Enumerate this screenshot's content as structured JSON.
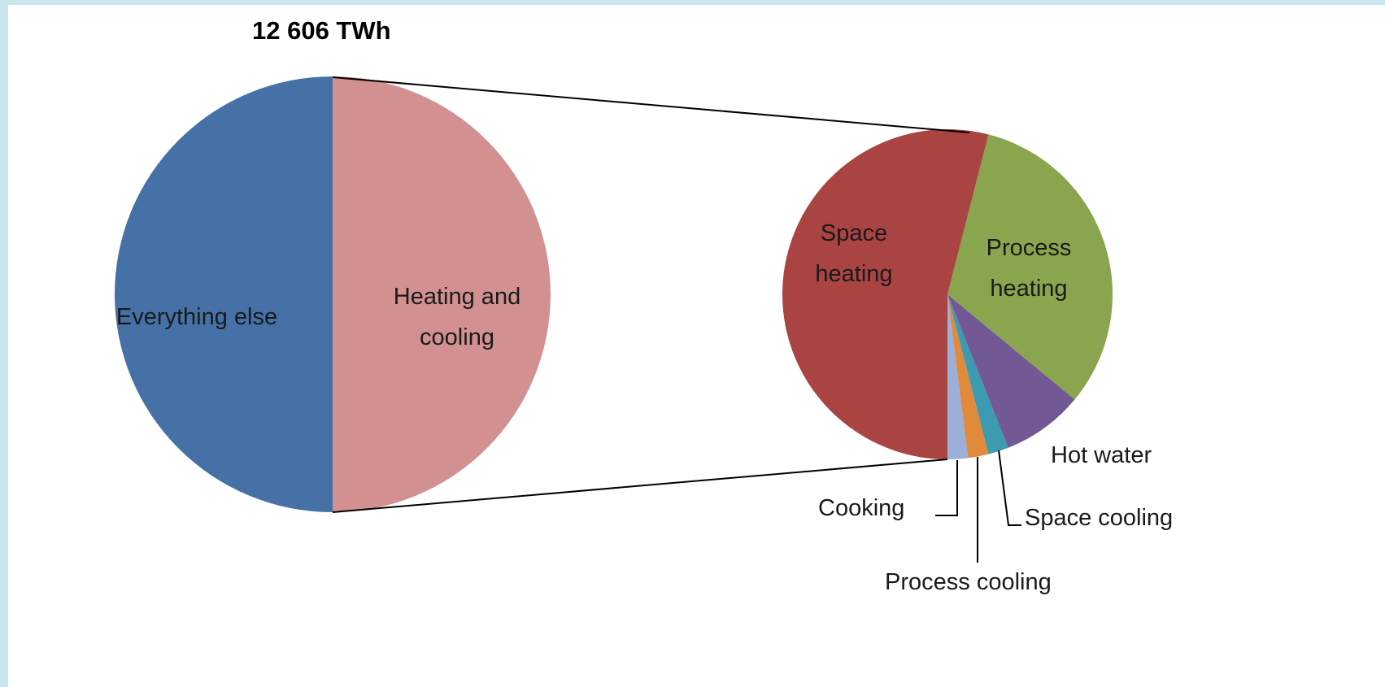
{
  "chart_data": [
    {
      "type": "pie",
      "title": "12 606 TWh",
      "categories": [
        "Everything else",
        "Heating and cooling"
      ],
      "values": [
        50,
        50
      ],
      "colors": [
        "#4571a6",
        "#d29190"
      ]
    },
    {
      "type": "pie",
      "categories": [
        "Space heating",
        "Process heating",
        "Hot water",
        "Space cooling",
        "Process cooling",
        "Cooking"
      ],
      "values": [
        54,
        32,
        8,
        2,
        2,
        2
      ],
      "colors": [
        "#a94442",
        "#89a54e",
        "#735896",
        "#3d9bb1",
        "#e28a3b",
        "#9bafd8"
      ]
    }
  ]
}
